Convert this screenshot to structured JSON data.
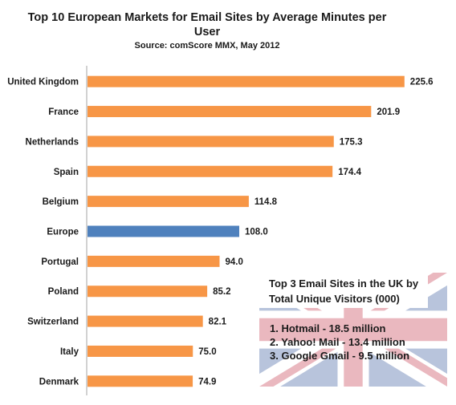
{
  "chart_data": {
    "type": "bar",
    "orientation": "horizontal",
    "title": "Top 10 European Markets for Email Sites by Average Minutes per User",
    "title_lines": [
      "Top 10 European Markets for Email Sites by Average Minutes per",
      "User"
    ],
    "subtitle": "Source: comScore MMX, May 2012",
    "xlabel": "",
    "ylabel": "",
    "xlim": [
      0,
      240
    ],
    "grid": false,
    "legend": "none",
    "categories": [
      "United Kingdom",
      "France",
      "Netherlands",
      "Spain",
      "Belgium",
      "Europe",
      "Portugal",
      "Poland",
      "Switzerland",
      "Italy",
      "Denmark"
    ],
    "values": [
      225.6,
      201.9,
      175.3,
      174.4,
      114.8,
      108.0,
      94.0,
      85.2,
      82.1,
      75.0,
      74.9
    ],
    "value_labels": [
      "225.6",
      "201.9",
      "175.3",
      "174.4",
      "114.8",
      "108.0",
      "94.0",
      "85.2",
      "82.1",
      "75.0",
      "74.9"
    ],
    "colors": {
      "bar": "#f79646",
      "highlight": "#4f81bd",
      "highlight_category": "Europe"
    }
  },
  "inset": {
    "title_lines": [
      "Top 3 Email Sites in the UK by",
      "Total Unique Visitors (000)"
    ],
    "items": [
      "1. Hotmail - 18.5 million",
      "2. Yahoo! Mail - 13.4 million",
      "3. Google Gmail - 9.5 million"
    ],
    "background": "union-jack-flag",
    "colors": {
      "blue": "#b8c4dc",
      "red": "#eab8bf",
      "white": "#ffffff"
    }
  }
}
